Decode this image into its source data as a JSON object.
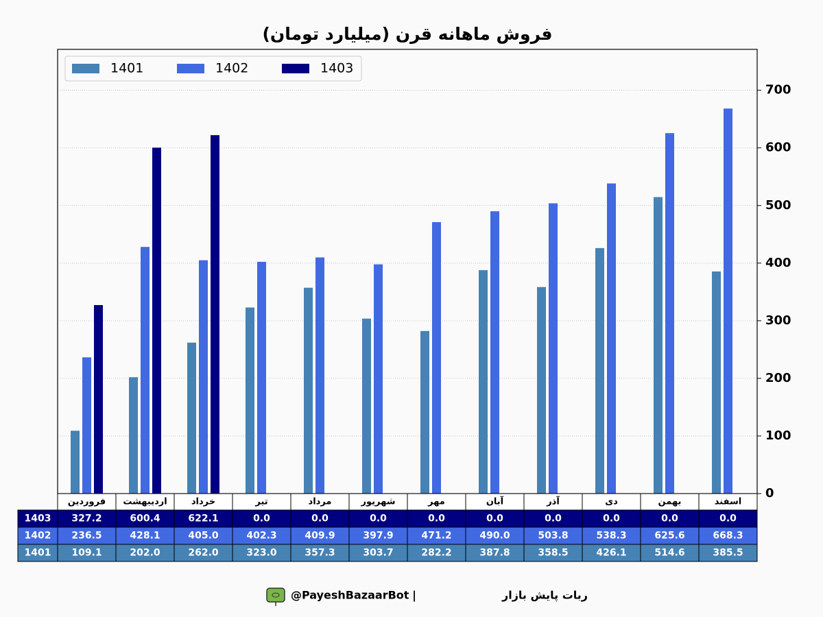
{
  "chart_data": {
    "type": "bar",
    "title": "فروش ماهانه قرن (میلیارد تومان)",
    "categories": [
      "فروردین",
      "اردیبهشت",
      "خرداد",
      "تیر",
      "مرداد",
      "شهریور",
      "مهر",
      "آبان",
      "آذر",
      "دی",
      "بهمن",
      "اسفند"
    ],
    "series": [
      {
        "name": "1401",
        "color": "#4682b4",
        "values": [
          109.1,
          202.0,
          262.0,
          323.0,
          357.3,
          303.7,
          282.2,
          387.8,
          358.5,
          426.1,
          514.6,
          385.5
        ],
        "value_labels": [
          "109.1",
          "202.0",
          "262.0",
          "323.0",
          "357.3",
          "303.7",
          "282.2",
          "387.8",
          "358.5",
          "426.1",
          "514.6",
          "385.5"
        ]
      },
      {
        "name": "1402",
        "color": "#4169e1",
        "values": [
          236.5,
          428.1,
          405.0,
          402.3,
          409.9,
          397.9,
          471.2,
          490.0,
          503.8,
          538.3,
          625.6,
          668.3
        ],
        "value_labels": [
          "236.5",
          "428.1",
          "405.0",
          "402.3",
          "409.9",
          "397.9",
          "471.2",
          "490.0",
          "503.8",
          "538.3",
          "625.6",
          "668.3"
        ]
      },
      {
        "name": "1403",
        "color": "#000080",
        "values": [
          327.2,
          600.4,
          622.1,
          0,
          0,
          0,
          0,
          0,
          0,
          0,
          0,
          0
        ],
        "value_labels": [
          "327.2",
          "600.4",
          "622.1",
          "0.0",
          "0.0",
          "0.0",
          "0.0",
          "0.0",
          "0.0",
          "0.0",
          "0.0",
          "0.0"
        ]
      }
    ],
    "ylim": [
      0,
      771
    ],
    "yticks": [
      0,
      100,
      200,
      300,
      400,
      500,
      600,
      700
    ],
    "grid": true,
    "legend": "upper left"
  },
  "footer": {
    "handle": "@PayeshBazaarBot",
    "separator": "|",
    "name": "ربات پایش بازار"
  }
}
